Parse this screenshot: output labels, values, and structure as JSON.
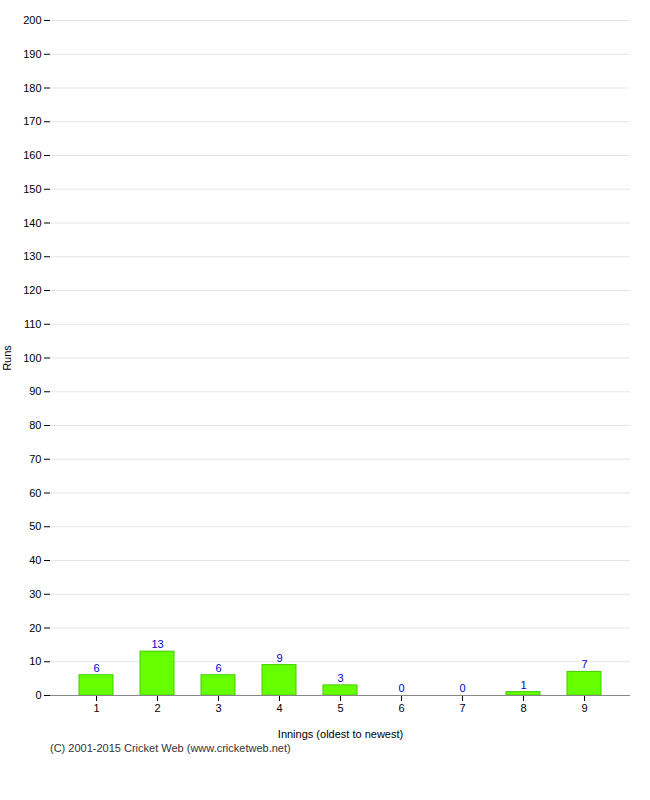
{
  "chart_data": {
    "type": "bar",
    "xlabel": "Innings (oldest to newest)",
    "ylabel": "Runs",
    "categories": [
      "1",
      "2",
      "3",
      "4",
      "5",
      "6",
      "7",
      "8",
      "9"
    ],
    "values": [
      6,
      13,
      6,
      9,
      3,
      0,
      0,
      1,
      7
    ],
    "color": "#66ff00",
    "ylim": [
      0,
      200
    ],
    "yticks": [
      0,
      10,
      20,
      30,
      40,
      50,
      60,
      70,
      80,
      90,
      100,
      110,
      120,
      130,
      140,
      150,
      160,
      170,
      180,
      190,
      200
    ],
    "grid": true,
    "data_labels": true,
    "annotations": [
      "(C) 2001-2015 Cricket Web (www.cricketweb.net)"
    ]
  }
}
